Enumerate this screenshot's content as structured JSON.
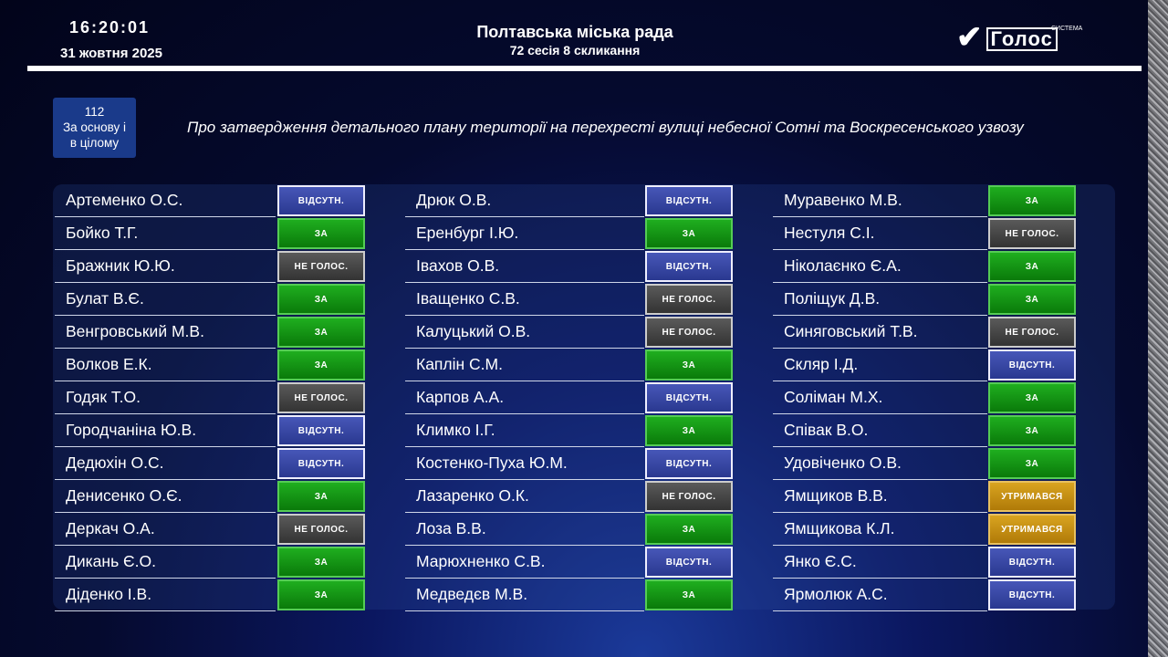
{
  "header": {
    "time": "16:20:01",
    "date": "31 жовтня 2025",
    "title": "Полтавська міська рада",
    "subtitle": "72 сесія 8 скликання",
    "logo": {
      "small": "СИСТЕМА",
      "word": "Голос"
    }
  },
  "question": {
    "number": "112",
    "type_line1": "За основу і",
    "type_line2": "в цілому",
    "text": "Про затвердження детального плану території на перехресті вулиці небесної Сотні та Воскресенського узвозу"
  },
  "vote_colors": {
    "ЗА": "#0f8f0f",
    "ВІДСУТН.": "#35449f",
    "НЕ ГОЛОС.": "#444444",
    "УТРИМАВСЯ": "#c8900f"
  },
  "columns": [
    [
      [
        "Артеменко О.С.",
        "ВІДСУТН."
      ],
      [
        "Бойко Т.Г.",
        "ЗА"
      ],
      [
        "Бражник Ю.Ю.",
        "НЕ ГОЛОС."
      ],
      [
        "Булат В.Є.",
        "ЗА"
      ],
      [
        "Венгровський М.В.",
        "ЗА"
      ],
      [
        "Волков Е.К.",
        "ЗА"
      ],
      [
        "Годяк Т.О.",
        "НЕ ГОЛОС."
      ],
      [
        "Городчаніна Ю.В.",
        "ВІДСУТН."
      ],
      [
        "Дедюхін О.С.",
        "ВІДСУТН."
      ],
      [
        "Денисенко О.Є.",
        "ЗА"
      ],
      [
        "Деркач О.А.",
        "НЕ ГОЛОС."
      ],
      [
        "Дикань Є.О.",
        "ЗА"
      ],
      [
        "Діденко І.В.",
        "ЗА"
      ]
    ],
    [
      [
        "Дрюк О.В.",
        "ВІДСУТН."
      ],
      [
        "Еренбург І.Ю.",
        "ЗА"
      ],
      [
        "Івахов О.В.",
        "ВІДСУТН."
      ],
      [
        "Іващенко С.В.",
        "НЕ ГОЛОС."
      ],
      [
        "Калуцький О.В.",
        "НЕ ГОЛОС."
      ],
      [
        "Каплін С.М.",
        "ЗА"
      ],
      [
        "Карпов А.А.",
        "ВІДСУТН."
      ],
      [
        "Климко І.Г.",
        "ЗА"
      ],
      [
        "Костенко-Пуха Ю.М.",
        "ВІДСУТН."
      ],
      [
        "Лазаренко О.К.",
        "НЕ ГОЛОС."
      ],
      [
        "Лоза В.В.",
        "ЗА"
      ],
      [
        "Марюхненко С.В.",
        "ВІДСУТН."
      ],
      [
        "Медведєв М.В.",
        "ЗА"
      ]
    ],
    [
      [
        "Муравенко М.В.",
        "ЗА"
      ],
      [
        "Нестуля С.І.",
        "НЕ ГОЛОС."
      ],
      [
        "Ніколаєнко Є.А.",
        "ЗА"
      ],
      [
        "Поліщук Д.В.",
        "ЗА"
      ],
      [
        "Синяговський Т.В.",
        "НЕ ГОЛОС."
      ],
      [
        "Скляр І.Д.",
        "ВІДСУТН."
      ],
      [
        "Соліман М.Х.",
        "ЗА"
      ],
      [
        "Співак В.О.",
        "ЗА"
      ],
      [
        "Удовіченко О.В.",
        "ЗА"
      ],
      [
        "Ямщиков В.В.",
        "УТРИМАВСЯ"
      ],
      [
        "Ямщикова К.Л.",
        "УТРИМАВСЯ"
      ],
      [
        "Янко Є.С.",
        "ВІДСУТН."
      ],
      [
        "Ярмолюк А.С.",
        "ВІДСУТН."
      ]
    ]
  ]
}
